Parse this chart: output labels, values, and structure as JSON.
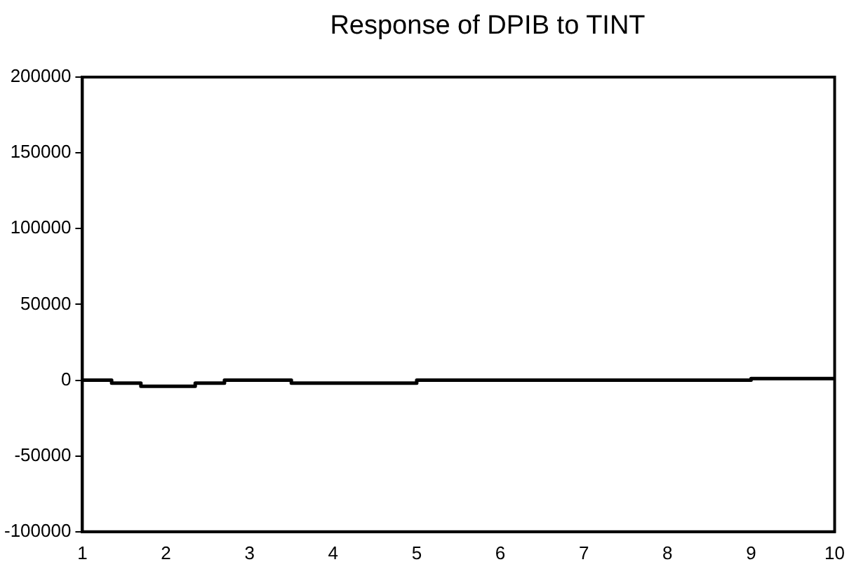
{
  "chart_data": {
    "type": "step",
    "title": "Response of DPIB to TINT",
    "x": [
      1,
      1.35,
      1.7,
      2.35,
      2.7,
      3.5,
      5,
      9,
      10
    ],
    "values": [
      0,
      0,
      -2000,
      -4000,
      -2000,
      0,
      -2000,
      0,
      1000
    ],
    "color": "#000000",
    "xlim": [
      1,
      10
    ],
    "xticks": [
      1,
      2,
      3,
      4,
      5,
      6,
      7,
      8,
      9,
      10
    ],
    "ylim": [
      -100000,
      200000
    ],
    "yticks": [
      -100000,
      -50000,
      0,
      50000,
      100000,
      150000,
      200000
    ],
    "grid": false,
    "legend": false,
    "marker": "none",
    "line_style": "solid"
  }
}
